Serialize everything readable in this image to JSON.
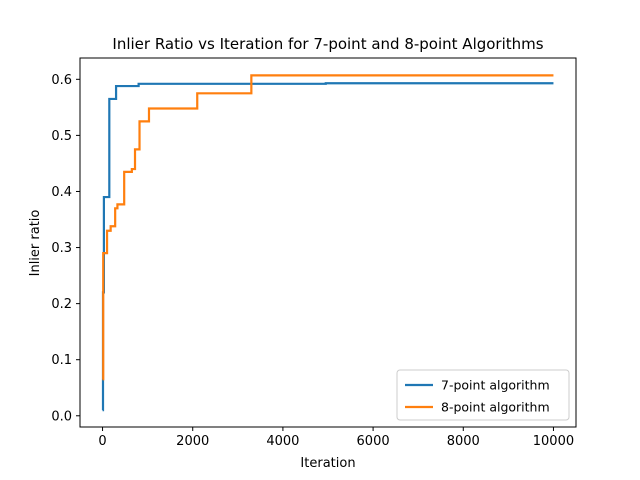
{
  "chart_data": {
    "type": "line",
    "title": "Inlier Ratio vs Iteration for 7-point and 8-point Algorithms",
    "xlabel": "Iteration",
    "ylabel": "Inlier ratio",
    "xlim": [
      -500,
      10500
    ],
    "ylim": [
      -0.02,
      0.638
    ],
    "xticks": [
      0,
      2000,
      4000,
      6000,
      8000,
      10000
    ],
    "yticks": [
      0.0,
      0.1,
      0.2,
      0.3,
      0.4,
      0.5,
      0.6
    ],
    "xtick_labels": [
      "0",
      "2000",
      "4000",
      "6000",
      "8000",
      "10000"
    ],
    "ytick_labels": [
      "0.0",
      "0.1",
      "0.2",
      "0.3",
      "0.4",
      "0.5",
      "0.6"
    ],
    "grid": false,
    "legend": "bottom-right",
    "step": true,
    "series": [
      {
        "name": "7-point algorithm",
        "color": "#1f77b4",
        "points": [
          [
            0,
            0.01
          ],
          [
            10,
            0.22
          ],
          [
            30,
            0.39
          ],
          [
            150,
            0.565
          ],
          [
            300,
            0.588
          ],
          [
            800,
            0.592
          ],
          [
            4950,
            0.593
          ],
          [
            10000,
            0.593
          ]
        ]
      },
      {
        "name": "8-point algorithm",
        "color": "#ff7f0e",
        "points": [
          [
            0,
            0.065
          ],
          [
            15,
            0.29
          ],
          [
            100,
            0.33
          ],
          [
            180,
            0.338
          ],
          [
            280,
            0.37
          ],
          [
            330,
            0.377
          ],
          [
            480,
            0.435
          ],
          [
            650,
            0.44
          ],
          [
            720,
            0.475
          ],
          [
            820,
            0.525
          ],
          [
            1030,
            0.548
          ],
          [
            2100,
            0.575
          ],
          [
            3300,
            0.607
          ],
          [
            10000,
            0.607
          ]
        ]
      }
    ]
  }
}
